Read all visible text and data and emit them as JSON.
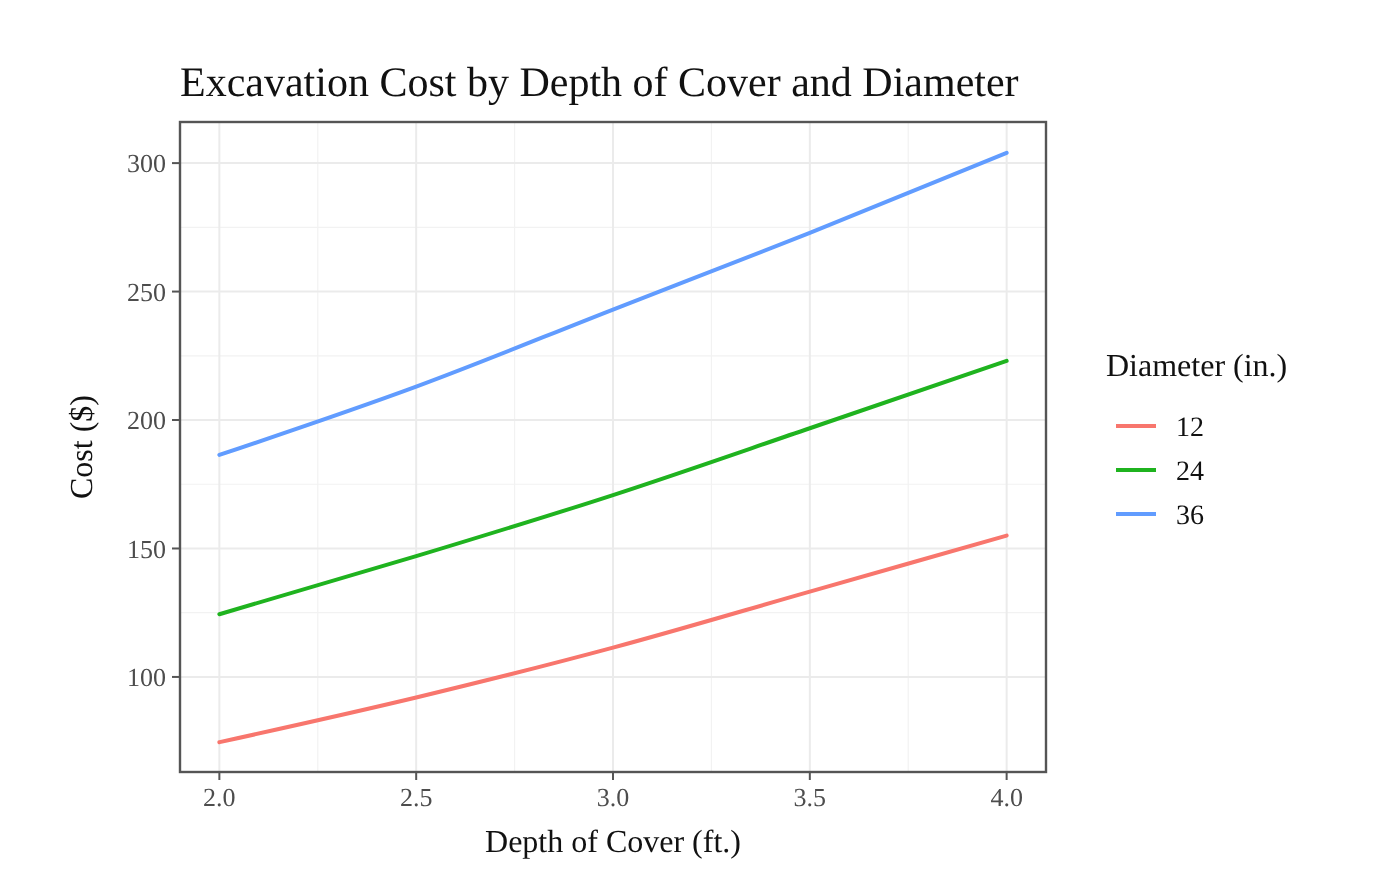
{
  "chart_data": {
    "type": "line",
    "title": "Excavation Cost by Depth of Cover and Diameter",
    "xlabel": "Depth of Cover (ft.)",
    "ylabel": "Cost ($)",
    "legend_title": "Diameter (in.)",
    "x": [
      2.0,
      2.5,
      3.0,
      3.5,
      4.0
    ],
    "series": [
      {
        "name": "12",
        "color": "#f8766d",
        "values": [
          74.6,
          92,
          111.4,
          133.2,
          155
        ]
      },
      {
        "name": "24",
        "color": "#1fb31f",
        "values": [
          124.4,
          147,
          170.8,
          196.8,
          223
        ]
      },
      {
        "name": "36",
        "color": "#619cff",
        "values": [
          186.4,
          213,
          243,
          272.8,
          304
        ]
      }
    ],
    "xlim": [
      1.9,
      4.1
    ],
    "ylim": [
      63,
      316
    ],
    "xticks": [
      {
        "value": 2,
        "label": "2.0"
      },
      2.5,
      {
        "value": 3,
        "label": "3.0"
      },
      3.5,
      {
        "value": 4,
        "label": "4.0"
      }
    ],
    "yticks": [
      100,
      150,
      200,
      250,
      300
    ],
    "grid": true,
    "legend": "right",
    "line_style": "solid",
    "marker": "none"
  }
}
